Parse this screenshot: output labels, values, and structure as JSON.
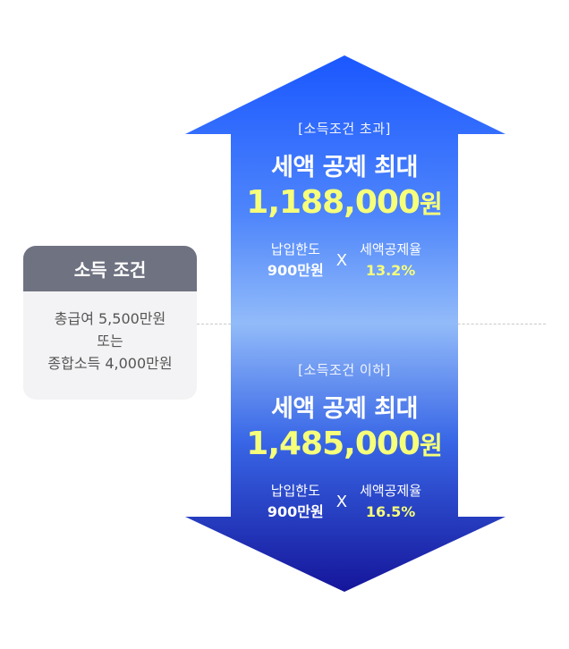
{
  "condition": {
    "title": "소득 조건",
    "lines": [
      "총급여 5,500만원",
      "또는",
      "종합소득 4,000만원"
    ]
  },
  "upper": {
    "label": "[소득조건 초과]",
    "headline": "세액 공제 최대",
    "amount": "1,188,000",
    "unit": "원",
    "limit_label": "납입한도",
    "limit_value": "900만원",
    "times": "X",
    "rate_label": "세액공제율",
    "rate_value": "13.2%"
  },
  "lower": {
    "label": "[소득조건 이하]",
    "headline": "세액 공제 최대",
    "amount": "1,485,000",
    "unit": "원",
    "limit_label": "납입한도",
    "limit_value": "900만원",
    "times": "X",
    "rate_label": "세액공제율",
    "rate_value": "16.5%"
  },
  "colors": {
    "arrow_top": "#1a57ff",
    "arrow_mid": "#8fb8fb",
    "arrow_bottom": "#15159a",
    "highlight": "#f6ff7a",
    "condition_header": "#6f7281"
  }
}
